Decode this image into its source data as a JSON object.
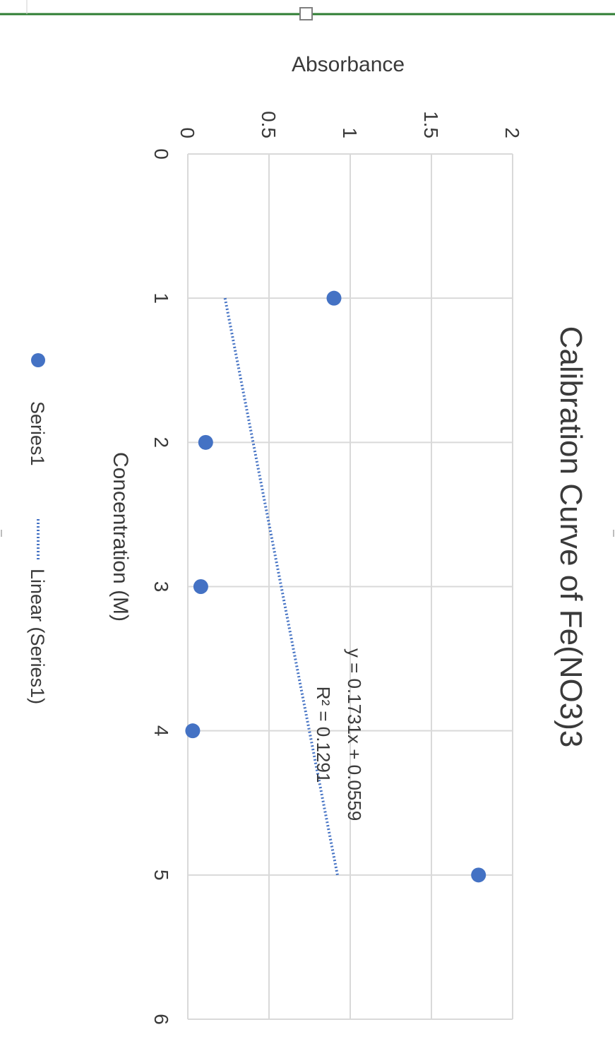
{
  "colors": {
    "marker": "#4472C4",
    "trendline": "#4472C4",
    "grid": "#d9d9d9",
    "text": "#3a3a3a",
    "selection_line": "#2e7d32",
    "handle": "#7f7f7f"
  },
  "chart_data": {
    "type": "scatter",
    "title": "Calibration Curve of Fe(NO3)3",
    "xlabel": "Concentration (M)",
    "ylabel": "Absorbance",
    "xlim": [
      0,
      6
    ],
    "ylim": [
      0,
      2
    ],
    "x_ticks": [
      "0",
      "1",
      "2",
      "3",
      "4",
      "5",
      "6"
    ],
    "y_ticks": [
      "0",
      "0.5",
      "1",
      "1.5",
      "2"
    ],
    "grid": true,
    "rotated": "90deg clockwise",
    "series": [
      {
        "name": "Series1",
        "x": [
          1,
          2,
          3,
          4,
          5
        ],
        "y": [
          0.9,
          0.11,
          0.08,
          0.03,
          1.79
        ]
      }
    ],
    "trendline": {
      "name": "Linear (Series1)",
      "slope": 0.1731,
      "intercept": 0.0559,
      "x_range": [
        1,
        5
      ],
      "equation": "y = 0.1731x + 0.0559",
      "r_squared": "R² = 0.1291"
    },
    "legend": {
      "position": "bottom",
      "items": [
        "Series1",
        "Linear (Series1)"
      ]
    }
  }
}
